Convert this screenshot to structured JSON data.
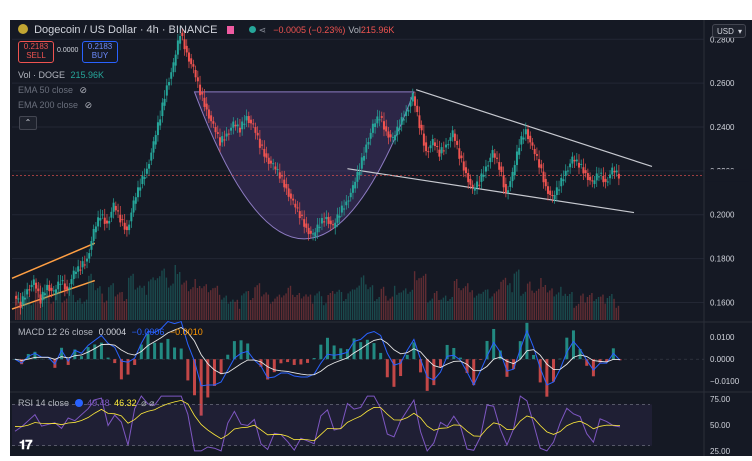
{
  "header": {
    "title": "Dogecoin / US Dollar · 4h · BINANCE",
    "change": "−0.0005 (−0.23%)",
    "vol_label": "Vol",
    "vol_value": "215.96K"
  },
  "trade": {
    "sell_price": "0.2183",
    "sell_label": "SELL",
    "spread": "0.0000",
    "buy_price": "0.2183",
    "buy_label": "BUY"
  },
  "indicators": {
    "vol_name": "Vol · DOGE",
    "vol_value": "215.96K",
    "ema50": "EMA 50 close",
    "ema200": "EMA 200 close"
  },
  "macd": {
    "label": "MACD 12 26 close",
    "v1": "0.0004",
    "v2": "−0.0006",
    "v3": "−0.0010"
  },
  "rsi": {
    "label": "RSI 14 close",
    "v1": "49.48",
    "v2": "46.32",
    "suffix": "⌀ ⌀"
  },
  "currency": "USD",
  "colors": {
    "up": "#26a69a",
    "down": "#ef5350",
    "bg": "#151924",
    "macd": "#2962ff",
    "signal": "#ff9800",
    "rsi": "#7e57c2"
  },
  "chart_data": {
    "type": "line",
    "title": "Dogecoin / US Dollar · 4h · BINANCE",
    "price_axis_ticks": [
      "0.2800",
      "0.2600",
      "0.2400",
      "0.2200",
      "0.2000",
      "0.1800",
      "0.1600"
    ],
    "price_ylim": [
      0.152,
      0.2888
    ],
    "macd_axis_ticks": [
      "0.0100",
      "0.0000",
      "−0.0100"
    ],
    "macd_ylim": [
      -0.014,
      0.016
    ],
    "rsi_axis_ticks": [
      "75.00",
      "50.00",
      "25.00"
    ],
    "rsi_ylim": [
      22,
      80
    ],
    "price_series": [
      {
        "x": 0,
        "y": 0.163
      },
      {
        "x": 3,
        "y": 0.159
      },
      {
        "x": 6,
        "y": 0.166
      },
      {
        "x": 9,
        "y": 0.169
      },
      {
        "x": 12,
        "y": 0.161
      },
      {
        "x": 15,
        "y": 0.168
      },
      {
        "x": 18,
        "y": 0.164
      },
      {
        "x": 21,
        "y": 0.17
      },
      {
        "x": 24,
        "y": 0.166
      },
      {
        "x": 27,
        "y": 0.173
      },
      {
        "x": 30,
        "y": 0.176
      },
      {
        "x": 33,
        "y": 0.18
      },
      {
        "x": 36,
        "y": 0.192
      },
      {
        "x": 39,
        "y": 0.2
      },
      {
        "x": 42,
        "y": 0.196
      },
      {
        "x": 45,
        "y": 0.204
      },
      {
        "x": 48,
        "y": 0.198
      },
      {
        "x": 51,
        "y": 0.193
      },
      {
        "x": 54,
        "y": 0.205
      },
      {
        "x": 57,
        "y": 0.214
      },
      {
        "x": 60,
        "y": 0.221
      },
      {
        "x": 63,
        "y": 0.232
      },
      {
        "x": 66,
        "y": 0.245
      },
      {
        "x": 69,
        "y": 0.259
      },
      {
        "x": 72,
        "y": 0.268
      },
      {
        "x": 75,
        "y": 0.283
      },
      {
        "x": 78,
        "y": 0.274
      },
      {
        "x": 81,
        "y": 0.266
      },
      {
        "x": 84,
        "y": 0.256
      },
      {
        "x": 87,
        "y": 0.248
      },
      {
        "x": 90,
        "y": 0.24
      },
      {
        "x": 93,
        "y": 0.233
      },
      {
        "x": 96,
        "y": 0.237
      },
      {
        "x": 99,
        "y": 0.241
      },
      {
        "x": 102,
        "y": 0.239
      },
      {
        "x": 105,
        "y": 0.245
      },
      {
        "x": 108,
        "y": 0.24
      },
      {
        "x": 111,
        "y": 0.232
      },
      {
        "x": 114,
        "y": 0.226
      },
      {
        "x": 117,
        "y": 0.222
      },
      {
        "x": 120,
        "y": 0.218
      },
      {
        "x": 123,
        "y": 0.212
      },
      {
        "x": 126,
        "y": 0.205
      },
      {
        "x": 129,
        "y": 0.2
      },
      {
        "x": 132,
        "y": 0.194
      },
      {
        "x": 135,
        "y": 0.19
      },
      {
        "x": 138,
        "y": 0.196
      },
      {
        "x": 141,
        "y": 0.199
      },
      {
        "x": 144,
        "y": 0.194
      },
      {
        "x": 147,
        "y": 0.201
      },
      {
        "x": 150,
        "y": 0.206
      },
      {
        "x": 153,
        "y": 0.212
      },
      {
        "x": 156,
        "y": 0.221
      },
      {
        "x": 159,
        "y": 0.232
      },
      {
        "x": 162,
        "y": 0.24
      },
      {
        "x": 165,
        "y": 0.245
      },
      {
        "x": 168,
        "y": 0.238
      },
      {
        "x": 171,
        "y": 0.234
      },
      {
        "x": 174,
        "y": 0.241
      },
      {
        "x": 177,
        "y": 0.247
      },
      {
        "x": 180,
        "y": 0.254
      },
      {
        "x": 183,
        "y": 0.241
      },
      {
        "x": 186,
        "y": 0.229
      },
      {
        "x": 189,
        "y": 0.233
      },
      {
        "x": 192,
        "y": 0.228
      },
      {
        "x": 195,
        "y": 0.232
      },
      {
        "x": 198,
        "y": 0.237
      },
      {
        "x": 201,
        "y": 0.227
      },
      {
        "x": 204,
        "y": 0.219
      },
      {
        "x": 207,
        "y": 0.211
      },
      {
        "x": 210,
        "y": 0.215
      },
      {
        "x": 213,
        "y": 0.222
      },
      {
        "x": 216,
        "y": 0.228
      },
      {
        "x": 219,
        "y": 0.222
      },
      {
        "x": 222,
        "y": 0.21
      },
      {
        "x": 225,
        "y": 0.218
      },
      {
        "x": 228,
        "y": 0.232
      },
      {
        "x": 231,
        "y": 0.239
      },
      {
        "x": 234,
        "y": 0.23
      },
      {
        "x": 237,
        "y": 0.223
      },
      {
        "x": 240,
        "y": 0.213
      },
      {
        "x": 243,
        "y": 0.207
      },
      {
        "x": 246,
        "y": 0.213
      },
      {
        "x": 249,
        "y": 0.22
      },
      {
        "x": 252,
        "y": 0.225
      },
      {
        "x": 255,
        "y": 0.223
      },
      {
        "x": 258,
        "y": 0.219
      },
      {
        "x": 261,
        "y": 0.214
      },
      {
        "x": 264,
        "y": 0.219
      },
      {
        "x": 267,
        "y": 0.215
      },
      {
        "x": 270,
        "y": 0.22
      },
      {
        "x": 273,
        "y": 0.218
      }
    ]
  }
}
